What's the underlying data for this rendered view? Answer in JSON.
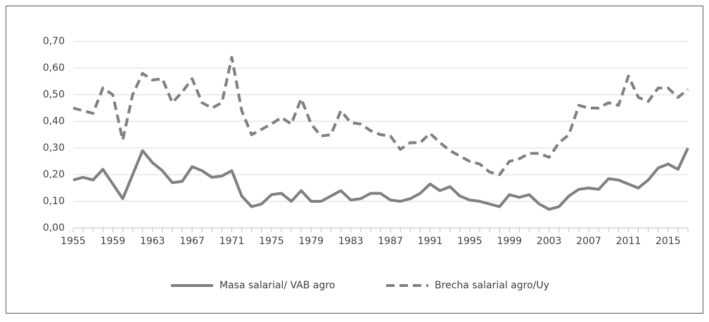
{
  "chart_data": {
    "type": "line",
    "x": [
      1955,
      1956,
      1957,
      1958,
      1959,
      1960,
      1961,
      1962,
      1963,
      1964,
      1965,
      1966,
      1967,
      1968,
      1969,
      1970,
      1971,
      1972,
      1973,
      1974,
      1975,
      1976,
      1977,
      1978,
      1979,
      1980,
      1981,
      1982,
      1983,
      1984,
      1985,
      1986,
      1987,
      1988,
      1989,
      1990,
      1991,
      1992,
      1993,
      1994,
      1995,
      1996,
      1997,
      1998,
      1999,
      2000,
      2001,
      2002,
      2003,
      2004,
      2005,
      2006,
      2007,
      2008,
      2009,
      2010,
      2011,
      2012,
      2013,
      2014,
      2015,
      2016,
      2017
    ],
    "series": [
      {
        "name": "Masa salarial/ VAB agro",
        "color": "#808080",
        "dash": false,
        "values": [
          0.18,
          0.19,
          0.18,
          0.22,
          0.165,
          0.11,
          0.2,
          0.29,
          0.245,
          0.215,
          0.17,
          0.175,
          0.23,
          0.215,
          0.19,
          0.195,
          0.215,
          0.12,
          0.08,
          0.09,
          0.125,
          0.13,
          0.1,
          0.14,
          0.1,
          0.1,
          0.12,
          0.14,
          0.105,
          0.11,
          0.13,
          0.13,
          0.105,
          0.1,
          0.11,
          0.13,
          0.165,
          0.14,
          0.155,
          0.12,
          0.105,
          0.1,
          0.09,
          0.08,
          0.125,
          0.115,
          0.125,
          0.09,
          0.07,
          0.08,
          0.12,
          0.145,
          0.15,
          0.145,
          0.185,
          0.18,
          0.165,
          0.15,
          0.18,
          0.225,
          0.24,
          0.22,
          0.3
        ]
      },
      {
        "name": "Brecha salarial agro/Uy",
        "color": "#808080",
        "dash": true,
        "values": [
          0.45,
          0.44,
          0.43,
          0.525,
          0.5,
          0.33,
          0.5,
          0.58,
          0.555,
          0.56,
          0.47,
          0.51,
          0.56,
          0.47,
          0.45,
          0.47,
          0.64,
          0.44,
          0.35,
          0.37,
          0.39,
          0.415,
          0.39,
          0.485,
          0.39,
          0.345,
          0.35,
          0.44,
          0.395,
          0.39,
          0.365,
          0.35,
          0.345,
          0.295,
          0.32,
          0.32,
          0.355,
          0.32,
          0.29,
          0.27,
          0.25,
          0.24,
          0.21,
          0.2,
          0.25,
          0.26,
          0.28,
          0.28,
          0.265,
          0.32,
          0.35,
          0.46,
          0.45,
          0.45,
          0.47,
          0.46,
          0.57,
          0.49,
          0.475,
          0.525,
          0.525,
          0.49,
          0.52
        ]
      }
    ],
    "xlim": [
      1955,
      2017
    ],
    "xticks": [
      1955,
      1959,
      1963,
      1967,
      1971,
      1975,
      1979,
      1983,
      1987,
      1991,
      1995,
      1999,
      2003,
      2007,
      2011,
      2015
    ],
    "ylim": [
      0,
      0.7
    ],
    "yticks": [
      {
        "value": 0,
        "label": "0,00"
      },
      {
        "value": 0.1,
        "label": "0,10"
      },
      {
        "value": 0.2,
        "label": "0,20"
      },
      {
        "value": 0.3,
        "label": "0,30"
      },
      {
        "value": 0.4,
        "label": "0,40"
      },
      {
        "value": 0.5,
        "label": "0,50"
      },
      {
        "value": 0.6,
        "label": "0,60"
      },
      {
        "value": 0.7,
        "label": "0,70"
      }
    ],
    "grid": true,
    "legend": "bottom"
  }
}
